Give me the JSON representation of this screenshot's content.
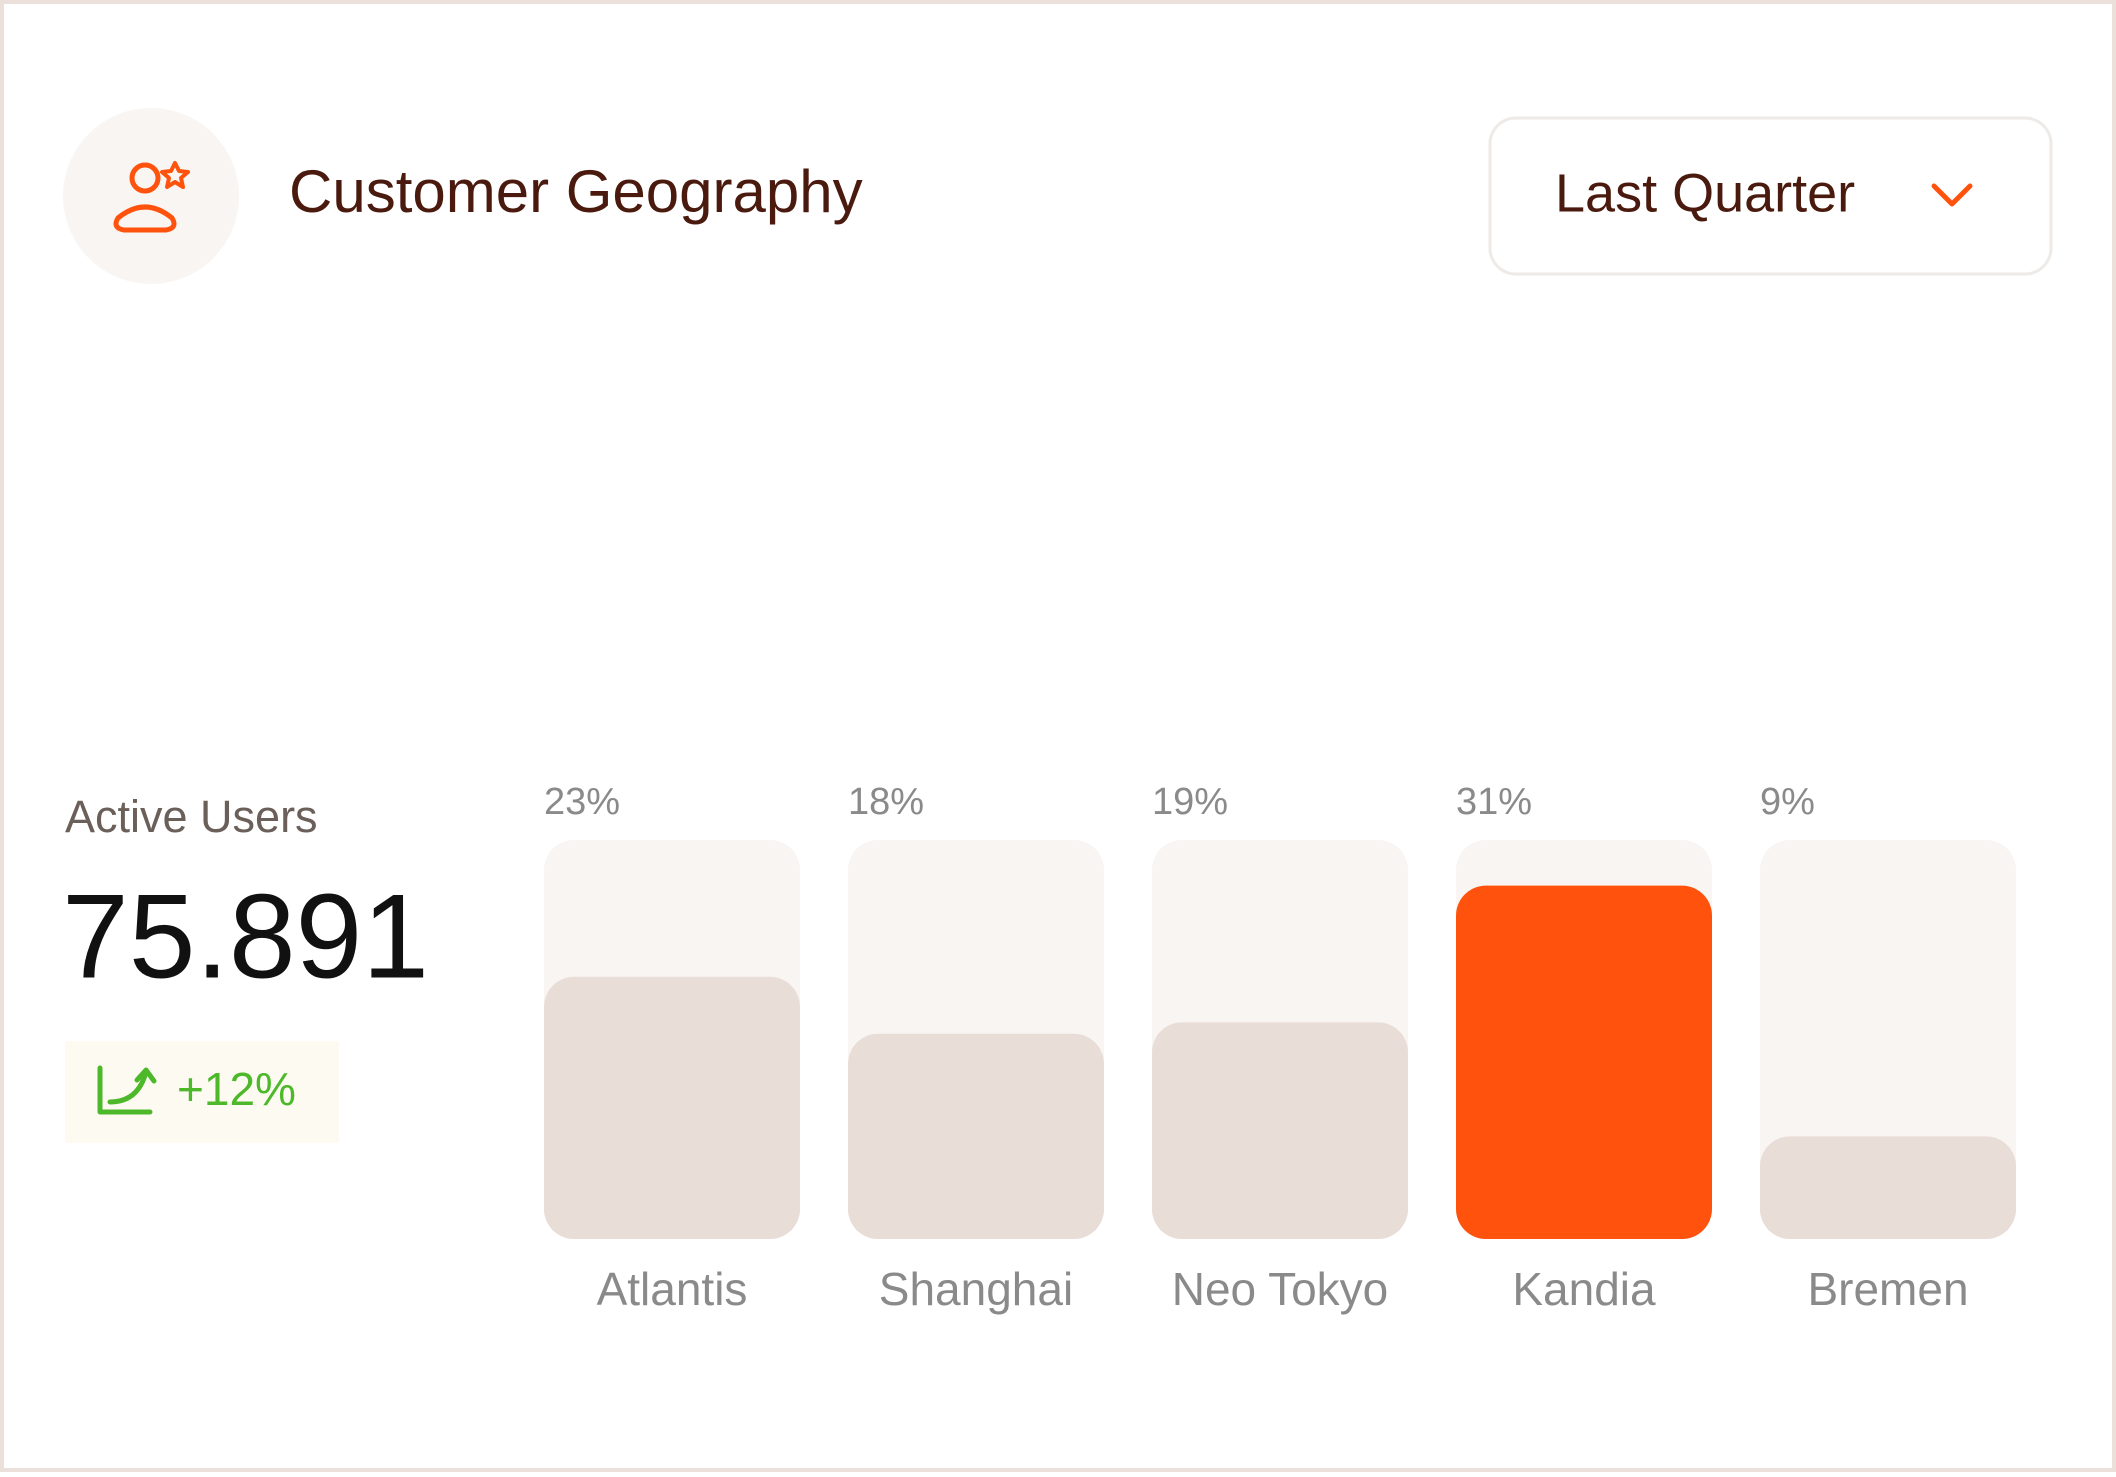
{
  "header": {
    "title": "Customer Geography"
  },
  "filter": {
    "label": "Last Quarter"
  },
  "metric": {
    "label": "Active Users",
    "value": "75.891",
    "change": "+12%"
  },
  "chart_data": {
    "type": "bar",
    "categories": [
      "Atlantis",
      "Shanghai",
      "Neo Tokyo",
      "Kandia",
      "Bremen"
    ],
    "values": [
      23,
      18,
      19,
      31,
      9
    ],
    "value_labels": [
      "23%",
      "18%",
      "19%",
      "31%",
      "9%"
    ],
    "colors": [
      "#e9ddd7",
      "#e9ddd7",
      "#e9ddd7",
      "#ff520d",
      "#e9ddd7"
    ],
    "ylim": [
      0,
      35
    ]
  }
}
